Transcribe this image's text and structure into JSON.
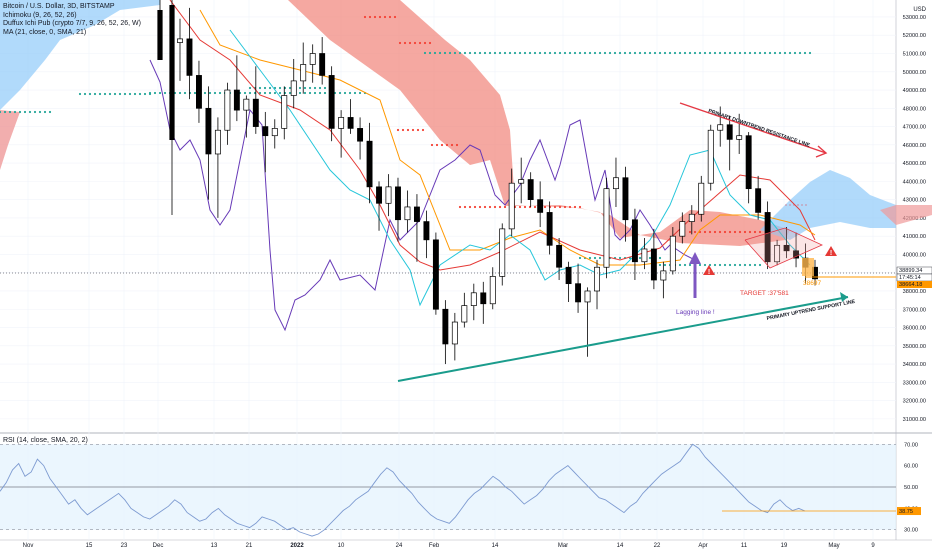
{
  "legend": {
    "symbol": "Bitcoin / U.S. Dollar, 3D, BITSTAMP",
    "ichimoku": "Ichimoku (9, 26, 52, 26)",
    "duffux": "Duffux Ichi Pub (crypto 7/7, 9, 26, 52, 26, W)",
    "ma": "MA (21, close, 0, SMA, 21)",
    "rsi": "RSI (14, close, SMA, 20, 2)"
  },
  "currency": "USD",
  "chart_data": {
    "type": "candlestick",
    "x_ticks": [
      "Nov",
      "15",
      "23",
      "Dec",
      "13",
      "21",
      "2022",
      "10",
      "24",
      "Feb",
      "14",
      "Mar",
      "14",
      "22",
      "Apr",
      "11",
      "19",
      "May",
      "9"
    ],
    "y_ticks": [
      "53000.00",
      "52000.00",
      "51000.00",
      "50000.00",
      "49000.00",
      "48000.00",
      "47000.00",
      "46000.00",
      "45000.00",
      "44000.00",
      "43000.00",
      "42000.00",
      "41000.00",
      "40000.00",
      "39000.00",
      "38000.00",
      "37000.00",
      "36000.00",
      "35000.00",
      "34000.00",
      "33000.00",
      "32000.00",
      "31000.00"
    ],
    "ylim": [
      30500,
      53600
    ],
    "price_labels": [
      {
        "text": "38899.34",
        "bg": "#ffffff",
        "fg": "#131722"
      },
      {
        "text": "17:45:14",
        "bg": "#ffffff",
        "fg": "#131722"
      },
      {
        "text": "38664.18",
        "bg": "#ff9800",
        "fg": "#131722"
      }
    ],
    "annotations": {
      "resistance": "PRIMARY DOWNTREND RESISTANCE LINE",
      "support": "PRIMARY UPTREND SUPPORT LINE",
      "target": "TARGET :37'581",
      "level": "38697",
      "lagging": "Lagging line !"
    },
    "candles": [
      [
        51600,
        52900,
        49500,
        51800
      ],
      [
        51800,
        53500,
        48500,
        49800
      ],
      [
        49800,
        50600,
        47200,
        48000
      ],
      [
        48000,
        49200,
        43000,
        45500
      ],
      [
        45500,
        47500,
        42000,
        46800
      ],
      [
        46800,
        49400,
        46000,
        49000
      ],
      [
        49000,
        50900,
        47300,
        47900
      ],
      [
        47900,
        48700,
        46400,
        48500
      ],
      [
        48500,
        50300,
        46600,
        47000
      ],
      [
        47000,
        47800,
        44500,
        46500
      ],
      [
        46500,
        47400,
        45800,
        46900
      ],
      [
        46900,
        49200,
        46300,
        48700
      ],
      [
        48700,
        50700,
        48000,
        49500
      ],
      [
        49500,
        51600,
        48800,
        50400
      ],
      [
        50400,
        51500,
        49400,
        51000
      ],
      [
        51000,
        51900,
        49300,
        49800
      ],
      [
        49800,
        50300,
        46200,
        46900
      ],
      [
        46900,
        47900,
        45300,
        47500
      ],
      [
        47500,
        48500,
        46600,
        46900
      ],
      [
        46900,
        47500,
        45200,
        46200
      ],
      [
        46200,
        47200,
        42800,
        43700
      ],
      [
        43700,
        44000,
        41300,
        42800
      ],
      [
        42800,
        44400,
        42100,
        43700
      ],
      [
        43700,
        44200,
        40700,
        41900
      ],
      [
        41900,
        43500,
        41200,
        42600
      ],
      [
        42600,
        43300,
        39600,
        41800
      ],
      [
        41800,
        42400,
        39800,
        40800
      ],
      [
        40800,
        41200,
        36700,
        37000
      ],
      [
        37000,
        37500,
        34000,
        35100
      ],
      [
        35100,
        36800,
        34200,
        36300
      ],
      [
        36300,
        37900,
        36000,
        37200
      ],
      [
        37200,
        38400,
        36400,
        37900
      ],
      [
        37900,
        38500,
        36200,
        37300
      ],
      [
        37300,
        39300,
        37000,
        38800
      ],
      [
        38800,
        41700,
        38300,
        41400
      ],
      [
        41400,
        44700,
        41000,
        43900
      ],
      [
        43900,
        45300,
        42800,
        44100
      ],
      [
        44100,
        44500,
        42600,
        43000
      ],
      [
        43000,
        44000,
        41500,
        42300
      ],
      [
        42300,
        42900,
        40000,
        40500
      ],
      [
        40500,
        40900,
        38600,
        39300
      ],
      [
        39300,
        39600,
        37400,
        38400
      ],
      [
        38400,
        39500,
        36800,
        37400
      ],
      [
        37400,
        38200,
        34400,
        38000
      ],
      [
        38000,
        39700,
        37000,
        39300
      ],
      [
        39300,
        44200,
        38700,
        43600
      ],
      [
        43600,
        45300,
        42600,
        44200
      ],
      [
        44200,
        44800,
        40700,
        41900
      ],
      [
        41900,
        42500,
        38600,
        39600
      ],
      [
        39600,
        40900,
        39200,
        40300
      ],
      [
        40300,
        41400,
        38100,
        38600
      ],
      [
        38600,
        39600,
        37600,
        39100
      ],
      [
        39100,
        41500,
        38900,
        41000
      ],
      [
        41000,
        42300,
        40600,
        41800
      ],
      [
        41800,
        42700,
        41100,
        42200
      ],
      [
        42200,
        44300,
        41800,
        43900
      ],
      [
        43900,
        47100,
        43500,
        46800
      ],
      [
        46800,
        48100,
        45900,
        47100
      ],
      [
        47100,
        47600,
        44600,
        46300
      ],
      [
        46300,
        47700,
        45500,
        46500
      ],
      [
        46500,
        46700,
        42800,
        43600
      ],
      [
        43600,
        44300,
        41900,
        42300
      ],
      [
        42300,
        42900,
        39200,
        39600
      ],
      [
        39600,
        40800,
        39400,
        40500
      ],
      [
        40500,
        41500,
        39800,
        40200
      ],
      [
        40200,
        41200,
        39300,
        39800
      ],
      [
        39800,
        40600,
        38400,
        39300
      ],
      [
        39300,
        39700,
        38300,
        38664
      ]
    ],
    "rsi": {
      "ylim": [
        28,
        72
      ],
      "y_ticks": [
        "70.00",
        "60.00",
        "50.00",
        "40.00",
        "30.00"
      ],
      "band": [
        30,
        70
      ],
      "mid": 50,
      "current": "38.75",
      "values": [
        48,
        52,
        58,
        61,
        55,
        57,
        63,
        60,
        54,
        50,
        46,
        42,
        44,
        40,
        37,
        39,
        41,
        43,
        45,
        47,
        44,
        40,
        38,
        36,
        35,
        37,
        39,
        41,
        44,
        42,
        38,
        36,
        34,
        35,
        38,
        40,
        37,
        35,
        33,
        32,
        31,
        33,
        36,
        35,
        34,
        32,
        30,
        31,
        29,
        28,
        27,
        28,
        30,
        33,
        36,
        39,
        41,
        44,
        46,
        48,
        52,
        56,
        59,
        57,
        53,
        50,
        47,
        43,
        40,
        37,
        35,
        34,
        33,
        36,
        40,
        44,
        47,
        49,
        52,
        55,
        53,
        50,
        48,
        45,
        42,
        44,
        46,
        49,
        53,
        56,
        58,
        60,
        57,
        54,
        51,
        48,
        45,
        44,
        42,
        40,
        38,
        41,
        43,
        47,
        50,
        53,
        56,
        58,
        60,
        62,
        66,
        70,
        68,
        64,
        61,
        58,
        55,
        52,
        49,
        46,
        43,
        41,
        39,
        38,
        42,
        44,
        41,
        39,
        40,
        38.75
      ]
    }
  }
}
